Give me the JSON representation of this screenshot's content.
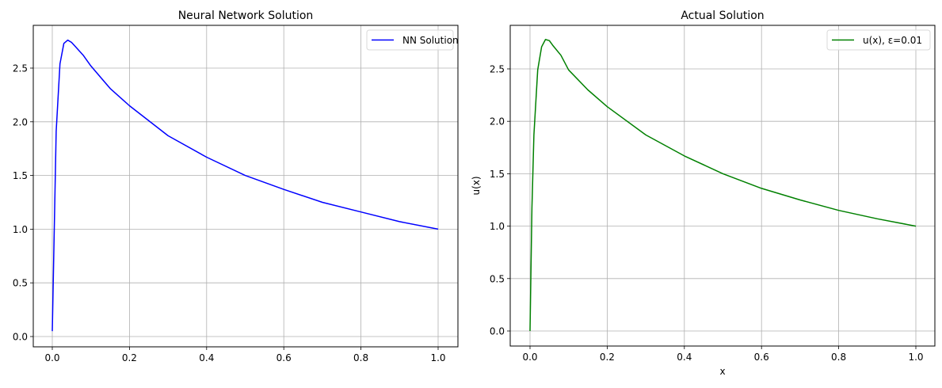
{
  "chart_data": [
    {
      "type": "line",
      "title": "Neural Network Solution",
      "xlabel": "",
      "ylabel": "",
      "xlim": [
        -0.05,
        1.05
      ],
      "ylim": [
        -0.09,
        2.9
      ],
      "xticks": [
        "0.0",
        "0.2",
        "0.4",
        "0.6",
        "0.8",
        "1.0"
      ],
      "yticks": [
        "0.0",
        "0.5",
        "1.0",
        "1.5",
        "2.0",
        "2.5"
      ],
      "grid": true,
      "legend_position": "upper right",
      "series": [
        {
          "name": "NN Solution",
          "color": "#0000ff",
          "x": [
            0.0,
            0.01,
            0.02,
            0.03,
            0.04,
            0.05,
            0.06,
            0.08,
            0.1,
            0.15,
            0.2,
            0.3,
            0.4,
            0.5,
            0.6,
            0.7,
            0.8,
            0.9,
            1.0
          ],
          "y": [
            0.05,
            1.91,
            2.54,
            2.73,
            2.76,
            2.74,
            2.7,
            2.62,
            2.52,
            2.31,
            2.15,
            1.87,
            1.67,
            1.5,
            1.37,
            1.25,
            1.16,
            1.07,
            1.0
          ]
        }
      ]
    },
    {
      "type": "line",
      "title": "Actual Solution",
      "xlabel": "x",
      "ylabel": "u(x)",
      "xlim": [
        -0.05,
        1.05
      ],
      "ylim": [
        -0.14,
        2.9
      ],
      "xticks": [
        "0.0",
        "0.2",
        "0.4",
        "0.6",
        "0.8",
        "1.0"
      ],
      "yticks": [
        "0.0",
        "0.5",
        "1.0",
        "1.5",
        "2.0",
        "2.5"
      ],
      "grid": true,
      "legend_position": "upper right",
      "series": [
        {
          "name": "u(x), ε=0.01",
          "color": "#008000",
          "x": [
            0.0,
            0.005,
            0.01,
            0.02,
            0.03,
            0.04,
            0.05,
            0.06,
            0.08,
            0.1,
            0.15,
            0.2,
            0.3,
            0.4,
            0.5,
            0.6,
            0.7,
            0.8,
            0.9,
            1.0
          ],
          "y": [
            0.0,
            1.17,
            1.87,
            2.49,
            2.71,
            2.78,
            2.77,
            2.72,
            2.63,
            2.49,
            2.3,
            2.14,
            1.87,
            1.67,
            1.5,
            1.36,
            1.25,
            1.15,
            1.07,
            1.0
          ]
        }
      ]
    }
  ]
}
